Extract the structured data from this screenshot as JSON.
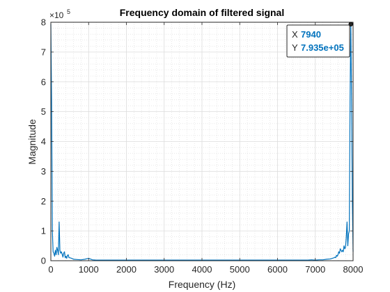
{
  "chart_data": {
    "type": "line",
    "title": "Frequency domain of filtered signal",
    "xlabel": "Frequency (Hz)",
    "ylabel": "Magnitude",
    "xlim": [
      0,
      8000
    ],
    "ylim": [
      0,
      8
    ],
    "y_exponent_base": "×10",
    "y_exponent_power": "5",
    "x_ticks": [
      "0",
      "1000",
      "2000",
      "3000",
      "4000",
      "5000",
      "6000",
      "7000",
      "8000"
    ],
    "y_ticks": [
      "0",
      "1",
      "2",
      "3",
      "4",
      "5",
      "6",
      "7",
      "8"
    ],
    "grid": true,
    "minor_grid": true,
    "color": "#0072bd",
    "series": [
      {
        "x": [
          0,
          20,
          40,
          60,
          80,
          100,
          120,
          140,
          160,
          180,
          200,
          220,
          240,
          260,
          280,
          300,
          320,
          340,
          360,
          380,
          400,
          420,
          440,
          460,
          480,
          500,
          550,
          600,
          700,
          800,
          900,
          1000,
          1100,
          1200,
          1500,
          2000,
          2500,
          3000,
          3500,
          4000,
          4500,
          5000,
          5500,
          6000,
          6500,
          6800,
          6900,
          7000,
          7100,
          7200,
          7300,
          7400,
          7500,
          7520,
          7540,
          7560,
          7580,
          7600,
          7620,
          7640,
          7660,
          7680,
          7700,
          7720,
          7740,
          7760,
          7780,
          7800,
          7820,
          7840,
          7860,
          7880,
          7900,
          7920,
          7940,
          7960,
          7980,
          8000
        ],
        "y": [
          7.935,
          5.4,
          1.0,
          0.3,
          0.25,
          0.15,
          0.35,
          0.2,
          0.45,
          0.35,
          0.2,
          1.3,
          0.35,
          0.25,
          0.3,
          0.22,
          0.12,
          0.25,
          0.3,
          0.1,
          0.15,
          0.08,
          0.18,
          0.2,
          0.1,
          0.1,
          0.08,
          0.05,
          0.04,
          0.03,
          0.05,
          0.08,
          0.03,
          0.02,
          0.02,
          0.02,
          0.02,
          0.02,
          0.02,
          0.02,
          0.02,
          0.02,
          0.02,
          0.02,
          0.02,
          0.02,
          0.03,
          0.02,
          0.03,
          0.03,
          0.05,
          0.06,
          0.1,
          0.12,
          0.1,
          0.18,
          0.15,
          0.2,
          0.3,
          0.25,
          0.4,
          0.35,
          0.3,
          0.35,
          0.3,
          0.5,
          0.4,
          0.45,
          0.8,
          1.3,
          0.5,
          0.9,
          1.0,
          5.4,
          7.935,
          5.3,
          2.0,
          0.3
        ]
      }
    ]
  },
  "datatip": {
    "x_key": "X",
    "x_value": "7940",
    "y_key": "Y",
    "y_value": "7.935e+05",
    "point_x": 7940,
    "point_y": 7.935
  }
}
